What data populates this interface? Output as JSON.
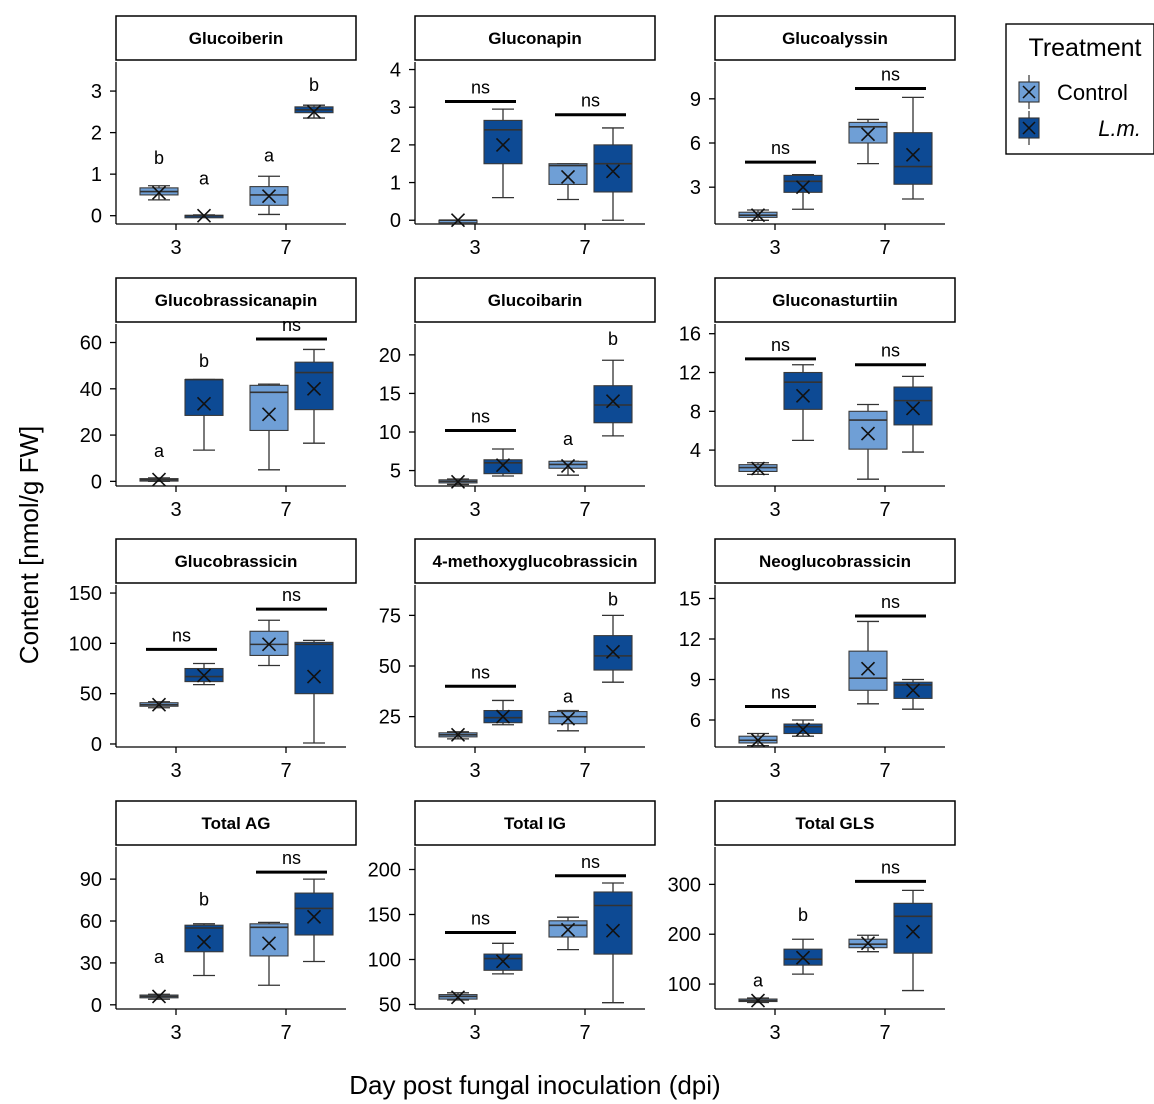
{
  "chart_data": {
    "type": "box",
    "ylabel": "Content [nmol/g FW]",
    "xlabel": "Day post fungal inoculation (dpi)",
    "legend": {
      "title": "Treatment",
      "position": "top-right",
      "entries": [
        {
          "label": "Control",
          "color": "#6f9fd6"
        },
        {
          "label": "L.m.",
          "color": "#0d4a94"
        }
      ]
    },
    "categories": [
      "3",
      "7"
    ],
    "series_order": [
      "Control",
      "L.m."
    ],
    "panels": [
      {
        "title": "Glucoiberin",
        "ylim": [
          -0.2,
          3.7
        ],
        "yticks": [
          0,
          1,
          2,
          3
        ],
        "boxes": [
          {
            "dpi": "3",
            "group": "Control",
            "min": 0.38,
            "q1": 0.5,
            "median": 0.58,
            "q3": 0.67,
            "max": 0.72,
            "mean": 0.55
          },
          {
            "dpi": "3",
            "group": "L.m.",
            "min": 0.0,
            "q1": 0.0,
            "median": 0.0,
            "q3": 0.01,
            "max": 0.02,
            "mean": 0.0
          },
          {
            "dpi": "7",
            "group": "Control",
            "min": 0.03,
            "q1": 0.25,
            "median": 0.5,
            "q3": 0.7,
            "max": 0.95,
            "mean": 0.47
          },
          {
            "dpi": "7",
            "group": "L.m.",
            "min": 2.35,
            "q1": 2.48,
            "median": 2.55,
            "q3": 2.62,
            "max": 2.66,
            "mean": 2.5
          }
        ],
        "annotations": [
          {
            "dpi": "3",
            "group": "Control",
            "text": "b",
            "y": 1.25
          },
          {
            "dpi": "3",
            "group": "L.m.",
            "text": "a",
            "y": 0.75
          },
          {
            "dpi": "7",
            "group": "Control",
            "text": "a",
            "y": 1.3
          },
          {
            "dpi": "7",
            "group": "L.m.",
            "text": "b",
            "y": 3.0
          }
        ]
      },
      {
        "title": "Gluconapin",
        "ylim": [
          -0.1,
          4.2
        ],
        "yticks": [
          0,
          1,
          2,
          3,
          4
        ],
        "boxes": [
          {
            "dpi": "3",
            "group": "Control",
            "min": 0.0,
            "q1": 0.0,
            "median": 0.0,
            "q3": 0.0,
            "max": 0.0,
            "mean": 0.0
          },
          {
            "dpi": "3",
            "group": "L.m.",
            "min": 0.6,
            "q1": 1.5,
            "median": 2.4,
            "q3": 2.65,
            "max": 2.95,
            "mean": 2.0
          },
          {
            "dpi": "7",
            "group": "Control",
            "min": 0.55,
            "q1": 0.95,
            "median": 1.45,
            "q3": 1.5,
            "max": 1.5,
            "mean": 1.15
          },
          {
            "dpi": "7",
            "group": "L.m.",
            "min": 0.0,
            "q1": 0.75,
            "median": 1.5,
            "q3": 2.0,
            "max": 2.45,
            "mean": 1.3
          }
        ],
        "brackets": [
          {
            "dpi": "3",
            "text": "ns",
            "y": 3.15
          },
          {
            "dpi": "7",
            "text": "ns",
            "y": 2.8
          }
        ]
      },
      {
        "title": "Glucoalyssin",
        "ylim": [
          0.5,
          11.5
        ],
        "yticks": [
          3,
          6,
          9
        ],
        "boxes": [
          {
            "dpi": "3",
            "group": "Control",
            "min": 0.75,
            "q1": 0.95,
            "median": 1.1,
            "q3": 1.3,
            "max": 1.45,
            "mean": 1.1
          },
          {
            "dpi": "3",
            "group": "L.m.",
            "min": 1.5,
            "q1": 2.65,
            "median": 3.4,
            "q3": 3.8,
            "max": 3.85,
            "mean": 3.0
          },
          {
            "dpi": "7",
            "group": "Control",
            "min": 4.6,
            "q1": 6.0,
            "median": 7.1,
            "q3": 7.4,
            "max": 7.6,
            "mean": 6.6
          },
          {
            "dpi": "7",
            "group": "L.m.",
            "min": 2.2,
            "q1": 3.2,
            "median": 4.4,
            "q3": 6.7,
            "max": 9.1,
            "mean": 5.2
          }
        ],
        "brackets": [
          {
            "dpi": "3",
            "text": "ns",
            "y": 4.7
          },
          {
            "dpi": "7",
            "text": "ns",
            "y": 9.7
          }
        ]
      },
      {
        "title": "Glucobrassicanapin",
        "ylim": [
          -2,
          68
        ],
        "yticks": [
          0,
          20,
          40,
          60
        ],
        "boxes": [
          {
            "dpi": "3",
            "group": "Control",
            "min": 0.0,
            "q1": 0.3,
            "median": 0.7,
            "q3": 1.2,
            "max": 1.5,
            "mean": 0.8
          },
          {
            "dpi": "3",
            "group": "L.m.",
            "min": 13.5,
            "q1": 28.5,
            "median": 44.0,
            "q3": 44.0,
            "max": 44.0,
            "mean": 33.5
          },
          {
            "dpi": "7",
            "group": "Control",
            "min": 5.0,
            "q1": 22.0,
            "median": 38.5,
            "q3": 41.5,
            "max": 42.0,
            "mean": 29.0
          },
          {
            "dpi": "7",
            "group": "L.m.",
            "min": 16.5,
            "q1": 31.0,
            "median": 47.0,
            "q3": 51.5,
            "max": 57.0,
            "mean": 40.0
          }
        ],
        "annotations": [
          {
            "dpi": "3",
            "group": "Control",
            "text": "a",
            "y": 10.5
          },
          {
            "dpi": "3",
            "group": "L.m.",
            "text": "b",
            "y": 49.5
          }
        ],
        "brackets": [
          {
            "dpi": "7",
            "text": "ns",
            "y": 61.5
          }
        ]
      },
      {
        "title": "Glucoibarin",
        "ylim": [
          3,
          24
        ],
        "yticks": [
          5,
          10,
          15,
          20
        ],
        "boxes": [
          {
            "dpi": "3",
            "group": "Control",
            "min": 3.2,
            "q1": 3.4,
            "median": 3.6,
            "q3": 3.8,
            "max": 3.9,
            "mean": 3.55
          },
          {
            "dpi": "3",
            "group": "L.m.",
            "min": 4.3,
            "q1": 4.6,
            "median": 6.0,
            "q3": 6.4,
            "max": 7.8,
            "mean": 5.7
          },
          {
            "dpi": "7",
            "group": "Control",
            "min": 4.4,
            "q1": 5.3,
            "median": 5.8,
            "q3": 6.2,
            "max": 6.2,
            "mean": 5.6
          },
          {
            "dpi": "7",
            "group": "L.m.",
            "min": 9.5,
            "q1": 11.2,
            "median": 13.5,
            "q3": 16.0,
            "max": 19.3,
            "mean": 14.0
          }
        ],
        "annotations": [
          {
            "dpi": "7",
            "group": "Control",
            "text": "a",
            "y": 8.3
          },
          {
            "dpi": "7",
            "group": "L.m.",
            "text": "b",
            "y": 21.3
          }
        ],
        "brackets": [
          {
            "dpi": "3",
            "text": "ns",
            "y": 10.2
          }
        ]
      },
      {
        "title": "Gluconasturtiin",
        "ylim": [
          0.3,
          17
        ],
        "yticks": [
          4,
          8,
          12,
          16
        ],
        "boxes": [
          {
            "dpi": "3",
            "group": "Control",
            "min": 1.5,
            "q1": 1.8,
            "median": 2.2,
            "q3": 2.5,
            "max": 2.7,
            "mean": 2.1
          },
          {
            "dpi": "3",
            "group": "L.m.",
            "min": 5.0,
            "q1": 8.2,
            "median": 11.0,
            "q3": 12.0,
            "max": 12.8,
            "mean": 9.6
          },
          {
            "dpi": "7",
            "group": "Control",
            "min": 1.0,
            "q1": 4.1,
            "median": 7.1,
            "q3": 8.0,
            "max": 8.7,
            "mean": 5.7
          },
          {
            "dpi": "7",
            "group": "L.m.",
            "min": 3.8,
            "q1": 6.6,
            "median": 9.1,
            "q3": 10.5,
            "max": 11.6,
            "mean": 8.3
          }
        ],
        "brackets": [
          {
            "dpi": "3",
            "text": "ns",
            "y": 13.4
          },
          {
            "dpi": "7",
            "text": "ns",
            "y": 12.8
          }
        ]
      },
      {
        "title": "Glucobrassicin",
        "ylim": [
          -3,
          158
        ],
        "yticks": [
          0,
          50,
          100,
          150
        ],
        "boxes": [
          {
            "dpi": "3",
            "group": "Control",
            "min": 36.0,
            "q1": 37.5,
            "median": 39.0,
            "q3": 41.0,
            "max": 42.0,
            "mean": 39.0
          },
          {
            "dpi": "3",
            "group": "L.m.",
            "min": 59.0,
            "q1": 62.0,
            "median": 67.0,
            "q3": 75.0,
            "max": 80.0,
            "mean": 68.0
          },
          {
            "dpi": "7",
            "group": "Control",
            "min": 78.0,
            "q1": 88.0,
            "median": 99.0,
            "q3": 112.0,
            "max": 123.0,
            "mean": 99.0
          },
          {
            "dpi": "7",
            "group": "L.m.",
            "min": 1.0,
            "q1": 50.0,
            "median": 99.0,
            "q3": 101.0,
            "max": 103.0,
            "mean": 67.0
          }
        ],
        "brackets": [
          {
            "dpi": "3",
            "text": "ns",
            "y": 94.0
          },
          {
            "dpi": "7",
            "text": "ns",
            "y": 134.0
          }
        ]
      },
      {
        "title": "4-methoxyglucobrassicin",
        "ylim": [
          10,
          90
        ],
        "yticks": [
          25,
          50,
          75
        ],
        "boxes": [
          {
            "dpi": "3",
            "group": "Control",
            "min": 14.0,
            "q1": 15.0,
            "median": 16.0,
            "q3": 17.0,
            "max": 17.5,
            "mean": 16.0
          },
          {
            "dpi": "3",
            "group": "L.m.",
            "min": 21.0,
            "q1": 22.0,
            "median": 24.5,
            "q3": 28.0,
            "max": 33.0,
            "mean": 25.0
          },
          {
            "dpi": "7",
            "group": "Control",
            "min": 18.0,
            "q1": 21.5,
            "median": 25.0,
            "q3": 27.5,
            "max": 28.0,
            "mean": 24.0
          },
          {
            "dpi": "7",
            "group": "L.m.",
            "min": 42.0,
            "q1": 48.0,
            "median": 55.0,
            "q3": 65.0,
            "max": 75.0,
            "mean": 57.0
          }
        ],
        "annotations": [
          {
            "dpi": "7",
            "group": "Control",
            "text": "a",
            "y": 32.0
          },
          {
            "dpi": "7",
            "group": "L.m.",
            "text": "b",
            "y": 80.0
          }
        ],
        "brackets": [
          {
            "dpi": "3",
            "text": "ns",
            "y": 40.0
          }
        ]
      },
      {
        "title": "Neoglucobrassicin",
        "ylim": [
          4,
          16
        ],
        "yticks": [
          6,
          9,
          12,
          15
        ],
        "boxes": [
          {
            "dpi": "3",
            "group": "Control",
            "min": 4.1,
            "q1": 4.3,
            "median": 4.5,
            "q3": 4.8,
            "max": 5.0,
            "mean": 4.5
          },
          {
            "dpi": "3",
            "group": "L.m.",
            "min": 4.8,
            "q1": 5.0,
            "median": 5.5,
            "q3": 5.7,
            "max": 6.0,
            "mean": 5.3
          },
          {
            "dpi": "7",
            "group": "Control",
            "min": 7.2,
            "q1": 8.2,
            "median": 9.1,
            "q3": 11.1,
            "max": 13.3,
            "mean": 9.8
          },
          {
            "dpi": "7",
            "group": "L.m.",
            "min": 6.8,
            "q1": 7.6,
            "median": 8.6,
            "q3": 8.8,
            "max": 9.0,
            "mean": 8.2
          }
        ],
        "brackets": [
          {
            "dpi": "3",
            "text": "ns",
            "y": 7.0
          },
          {
            "dpi": "7",
            "text": "ns",
            "y": 13.7
          }
        ]
      },
      {
        "title": "Total AG",
        "ylim": [
          -3,
          113
        ],
        "yticks": [
          0,
          30,
          60,
          90
        ],
        "boxes": [
          {
            "dpi": "3",
            "group": "Control",
            "min": 4.0,
            "q1": 5.0,
            "median": 6.0,
            "q3": 7.0,
            "max": 7.5,
            "mean": 6.0
          },
          {
            "dpi": "3",
            "group": "L.m.",
            "min": 21.0,
            "q1": 38.0,
            "median": 55.0,
            "q3": 57.0,
            "max": 58.0,
            "mean": 45.0
          },
          {
            "dpi": "7",
            "group": "Control",
            "min": 14.0,
            "q1": 35.0,
            "median": 55.5,
            "q3": 58.0,
            "max": 59.0,
            "mean": 44.0
          },
          {
            "dpi": "7",
            "group": "L.m.",
            "min": 31.0,
            "q1": 50.0,
            "median": 69.0,
            "q3": 80.0,
            "max": 90.0,
            "mean": 63.0
          }
        ],
        "annotations": [
          {
            "dpi": "3",
            "group": "Control",
            "text": "a",
            "y": 30.0
          },
          {
            "dpi": "3",
            "group": "L.m.",
            "text": "b",
            "y": 71.0
          }
        ],
        "brackets": [
          {
            "dpi": "7",
            "text": "ns",
            "y": 95.0
          }
        ]
      },
      {
        "title": "Total IG",
        "ylim": [
          45,
          225
        ],
        "yticks": [
          50,
          100,
          150,
          200
        ],
        "boxes": [
          {
            "dpi": "3",
            "group": "Control",
            "min": 55.0,
            "q1": 56.0,
            "median": 59.0,
            "q3": 61.0,
            "max": 63.0,
            "mean": 58.0
          },
          {
            "dpi": "3",
            "group": "L.m.",
            "min": 84.0,
            "q1": 88.0,
            "median": 101.0,
            "q3": 106.0,
            "max": 118.0,
            "mean": 98.0
          },
          {
            "dpi": "7",
            "group": "Control",
            "min": 111.0,
            "q1": 125.0,
            "median": 138.0,
            "q3": 143.0,
            "max": 147.0,
            "mean": 133.0
          },
          {
            "dpi": "7",
            "group": "L.m.",
            "min": 52.0,
            "q1": 106.0,
            "median": 160.0,
            "q3": 175.0,
            "max": 185.0,
            "mean": 132.0
          }
        ],
        "brackets": [
          {
            "dpi": "3",
            "text": "ns",
            "y": 130.0
          },
          {
            "dpi": "7",
            "text": "ns",
            "y": 193.0
          }
        ]
      },
      {
        "title": "Total GLS",
        "ylim": [
          50,
          375
        ],
        "yticks": [
          100,
          200,
          300
        ],
        "boxes": [
          {
            "dpi": "3",
            "group": "Control",
            "min": 63.0,
            "q1": 65.0,
            "median": 67.0,
            "q3": 70.0,
            "max": 72.0,
            "mean": 67.0
          },
          {
            "dpi": "3",
            "group": "L.m.",
            "min": 120.0,
            "q1": 138.0,
            "median": 150.0,
            "q3": 170.0,
            "max": 190.0,
            "mean": 153.0
          },
          {
            "dpi": "7",
            "group": "Control",
            "min": 165.0,
            "q1": 173.0,
            "median": 180.0,
            "q3": 190.0,
            "max": 198.0,
            "mean": 182.0
          },
          {
            "dpi": "7",
            "group": "L.m.",
            "min": 87.0,
            "q1": 162.0,
            "median": 236.0,
            "q3": 262.0,
            "max": 288.0,
            "mean": 205.0
          }
        ],
        "annotations": [
          {
            "dpi": "3",
            "group": "Control",
            "text": "a",
            "y": 95.0
          },
          {
            "dpi": "3",
            "group": "L.m.",
            "text": "b",
            "y": 227.0
          }
        ],
        "brackets": [
          {
            "dpi": "7",
            "text": "ns",
            "y": 306.0
          }
        ]
      }
    ]
  }
}
